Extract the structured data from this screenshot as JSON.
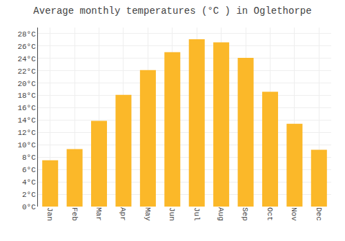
{
  "chart_data": {
    "type": "bar",
    "title": "Average monthly temperatures (°C ) in Oglethorpe",
    "categories": [
      "Jan",
      "Feb",
      "Mar",
      "Apr",
      "May",
      "Jun",
      "Jul",
      "Aug",
      "Sep",
      "Oct",
      "Nov",
      "Dec"
    ],
    "values": [
      7.5,
      9.3,
      13.9,
      18.1,
      22.1,
      25.0,
      27.1,
      26.6,
      24.1,
      18.6,
      13.4,
      9.2
    ],
    "color": "#FBB829",
    "ylim": [
      0,
      29
    ],
    "yticks": [
      {
        "value": 0,
        "label": "0°C"
      },
      {
        "value": 2,
        "label": "2°C"
      },
      {
        "value": 4,
        "label": "4°C"
      },
      {
        "value": 6,
        "label": "6°C"
      },
      {
        "value": 8,
        "label": "8°C"
      },
      {
        "value": 10,
        "label": "10°C"
      },
      {
        "value": 12,
        "label": "12°C"
      },
      {
        "value": 14,
        "label": "14°C"
      },
      {
        "value": 16,
        "label": "16°C"
      },
      {
        "value": 18,
        "label": "18°C"
      },
      {
        "value": 20,
        "label": "20°C"
      },
      {
        "value": 22,
        "label": "22°C"
      },
      {
        "value": 24,
        "label": "24°C"
      },
      {
        "value": 26,
        "label": "26°C"
      },
      {
        "value": 28,
        "label": "28°C"
      }
    ],
    "grid": true
  }
}
